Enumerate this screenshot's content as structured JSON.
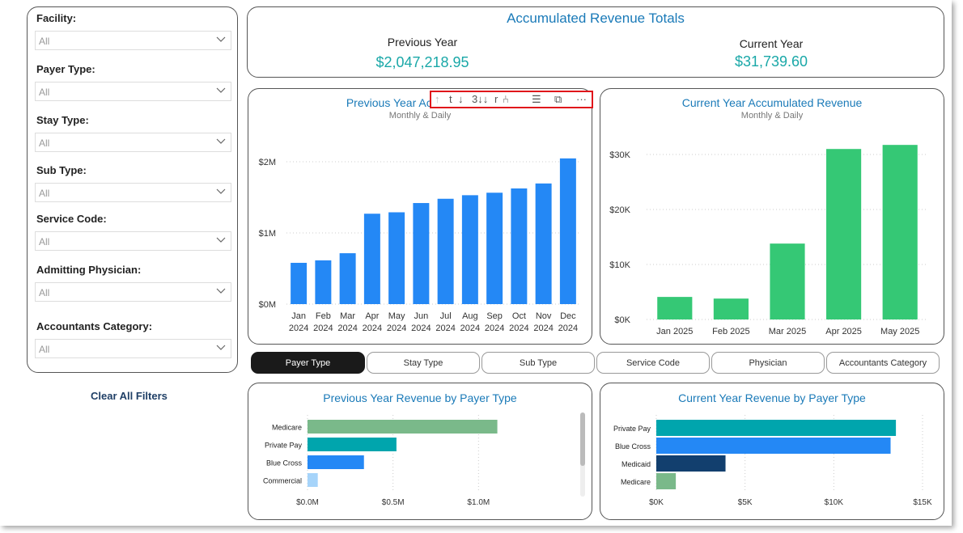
{
  "filters": [
    {
      "label": "Facility:",
      "value": "All"
    },
    {
      "label": "Payer Type:",
      "value": "All"
    },
    {
      "label": "Stay Type:",
      "value": "All"
    },
    {
      "label": "Sub Type:",
      "value": "All"
    },
    {
      "label": "Service Code:",
      "value": "All"
    },
    {
      "label": "Admitting Physician:",
      "value": "All"
    },
    {
      "label": "Accountants Category:",
      "value": "All"
    }
  ],
  "clear_filters_label": "Clear All Filters",
  "totals": {
    "title": "Accumulated Revenue Totals",
    "previous_label": "Previous Year",
    "previous_value": "$2,047,218.95",
    "current_label": "Current Year",
    "current_value": "$31,739.60"
  },
  "toolbar": {
    "icons": [
      "arrow-up-icon",
      "drill-next-level-icon",
      "arrow-down-icon",
      "expand-all-down-icon",
      "fork-drill-icon",
      "filter-icon",
      "focus-mode-icon",
      "more-options-icon"
    ],
    "glyphs": [
      "↑",
      "t",
      "↓",
      "3↓↓",
      "r",
      "⑃",
      "☰",
      "⧉",
      "···"
    ]
  },
  "tabs": [
    {
      "label": "Payer Type",
      "active": true
    },
    {
      "label": "Stay Type",
      "active": false
    },
    {
      "label": "Sub Type",
      "active": false
    },
    {
      "label": "Service Code",
      "active": false
    },
    {
      "label": "Physician",
      "active": false
    },
    {
      "label": "Accountants Category",
      "active": false
    }
  ],
  "colors": {
    "blue": "#2488f5",
    "green": "#35c875",
    "title_blue": "#1a7ab8",
    "teal": "#00a5ad",
    "sage": "#7ab98a",
    "navy": "#123f6e",
    "light_blue": "#a6d4fa"
  },
  "chart_data": [
    {
      "id": "prev-monthly",
      "type": "bar",
      "title": "Previous Year Accumulated Revenue",
      "title_visible": "Previous Year Accum",
      "subtitle": "Monthly & Daily",
      "categories": [
        "Jan",
        "Feb",
        "Mar",
        "Apr",
        "May",
        "Jun",
        "Jul",
        "Aug",
        "Sep",
        "Oct",
        "Nov",
        "Dec"
      ],
      "category_years": [
        "2024",
        "2024",
        "2024",
        "2024",
        "2024",
        "2024",
        "2024",
        "2024",
        "2024",
        "2024",
        "2024",
        "2024"
      ],
      "values": [
        580000,
        615000,
        715000,
        1270000,
        1290000,
        1420000,
        1480000,
        1530000,
        1565000,
        1625000,
        1695000,
        2047218.95
      ],
      "ylim": [
        0,
        2000000
      ],
      "yticks": [
        0,
        1000000,
        2000000
      ],
      "ytick_labels": [
        "$0M",
        "$1M",
        "$2M"
      ],
      "color": "#2488f5"
    },
    {
      "id": "curr-monthly",
      "type": "bar",
      "title": "Current Year Accumulated Revenue",
      "subtitle": "Monthly & Daily",
      "categories": [
        "Jan 2025",
        "Feb 2025",
        "Mar 2025",
        "Apr 2025",
        "May 2025"
      ],
      "values": [
        4100,
        3800,
        13800,
        31000,
        31739.6
      ],
      "ylim": [
        0,
        30000
      ],
      "yticks": [
        0,
        10000,
        20000,
        30000
      ],
      "ytick_labels": [
        "$0K",
        "$10K",
        "$20K",
        "$30K"
      ],
      "color": "#35c875"
    },
    {
      "id": "prev-payer",
      "type": "bar",
      "orientation": "horizontal",
      "title": "Previous Year Revenue by Payer Type",
      "categories": [
        "Medicare",
        "Private Pay",
        "Blue Cross",
        "Commercial"
      ],
      "values": [
        1110000,
        520000,
        330000,
        60000
      ],
      "colors": [
        "#7ab98a",
        "#00a5ad",
        "#2488f5",
        "#a6d4fa"
      ],
      "xlim": [
        0,
        1500000
      ],
      "xticks": [
        0,
        500000,
        1000000
      ],
      "xtick_labels": [
        "$0.0M",
        "$0.5M",
        "$1.0M"
      ]
    },
    {
      "id": "curr-payer",
      "type": "bar",
      "orientation": "horizontal",
      "title": "Current Year Revenue by Payer Type",
      "categories": [
        "Private Pay",
        "Blue Cross",
        "Medicaid",
        "Medicare"
      ],
      "values": [
        13500,
        13200,
        3900,
        1100
      ],
      "colors": [
        "#00a5ad",
        "#2488f5",
        "#123f6e",
        "#7ab98a"
      ],
      "xlim": [
        0,
        15000
      ],
      "xticks": [
        0,
        5000,
        10000,
        15000
      ],
      "xtick_labels": [
        "$0K",
        "$5K",
        "$10K",
        "$15K"
      ]
    }
  ]
}
